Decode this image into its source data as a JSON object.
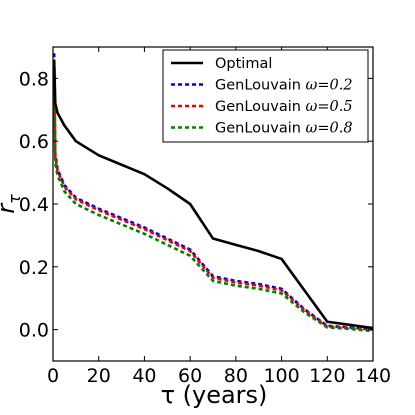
{
  "chart_data": {
    "type": "line",
    "title": "",
    "xlabel": "τ (years)",
    "ylabel": "r_τ",
    "xlim": [
      0,
      140
    ],
    "ylim": [
      -0.1,
      0.9
    ],
    "xticks": [
      0,
      20,
      40,
      60,
      80,
      100,
      120,
      140
    ],
    "yticks": [
      0.0,
      0.2,
      0.4,
      0.6,
      0.8
    ],
    "xtick_labels": [
      "0",
      "20",
      "40",
      "60",
      "80",
      "100",
      "120",
      "140"
    ],
    "ytick_labels": [
      "0.0",
      "0.2",
      "0.4",
      "0.6",
      "0.8"
    ],
    "grid": false,
    "legend_position": "top-right",
    "series": [
      {
        "name": "Optimal",
        "color": "#000000",
        "style": "solid",
        "x": [
          0.5,
          1,
          2,
          5,
          10,
          20,
          30,
          40,
          50,
          60,
          70,
          80,
          90,
          100,
          110,
          120,
          130,
          140
        ],
        "y": [
          0.86,
          0.72,
          0.69,
          0.65,
          0.6,
          0.555,
          0.525,
          0.495,
          0.45,
          0.4,
          0.29,
          0.27,
          0.25,
          0.225,
          0.125,
          0.025,
          0.015,
          0.005
        ]
      },
      {
        "name": "GenLouvain ω=0.2",
        "name_prefix": "GenLouvain ",
        "name_math": "ω=0.2",
        "color": "#0000dd",
        "style": "dashed",
        "x": [
          0.5,
          1,
          2,
          5,
          10,
          20,
          30,
          40,
          50,
          60,
          70,
          80,
          90,
          100,
          110,
          120,
          130,
          140
        ],
        "y": [
          0.88,
          0.56,
          0.51,
          0.46,
          0.42,
          0.385,
          0.355,
          0.325,
          0.29,
          0.255,
          0.17,
          0.155,
          0.145,
          0.13,
          0.065,
          0.012,
          0.007,
          0.0
        ]
      },
      {
        "name": "GenLouvain ω=0.5",
        "name_prefix": "GenLouvain ",
        "name_math": "ω=0.5",
        "color": "#ee0000",
        "style": "dashed",
        "x": [
          0.5,
          1,
          2,
          5,
          10,
          20,
          30,
          40,
          50,
          60,
          70,
          80,
          90,
          100,
          110,
          120,
          130,
          140
        ],
        "y": [
          0.85,
          0.55,
          0.505,
          0.455,
          0.415,
          0.38,
          0.35,
          0.32,
          0.285,
          0.25,
          0.165,
          0.15,
          0.14,
          0.125,
          0.062,
          0.01,
          0.005,
          0.0
        ]
      },
      {
        "name": "GenLouvain ω=0.8",
        "name_prefix": "GenLouvain ",
        "name_math": "ω=0.8",
        "color": "#008000",
        "style": "dashed",
        "x": [
          0.5,
          1,
          2,
          5,
          10,
          20,
          30,
          40,
          50,
          60,
          70,
          80,
          90,
          100,
          110,
          120,
          130,
          140
        ],
        "y": [
          0.84,
          0.53,
          0.49,
          0.44,
          0.4,
          0.365,
          0.335,
          0.305,
          0.27,
          0.235,
          0.155,
          0.14,
          0.13,
          0.115,
          0.055,
          0.007,
          0.002,
          -0.005
        ]
      }
    ]
  }
}
